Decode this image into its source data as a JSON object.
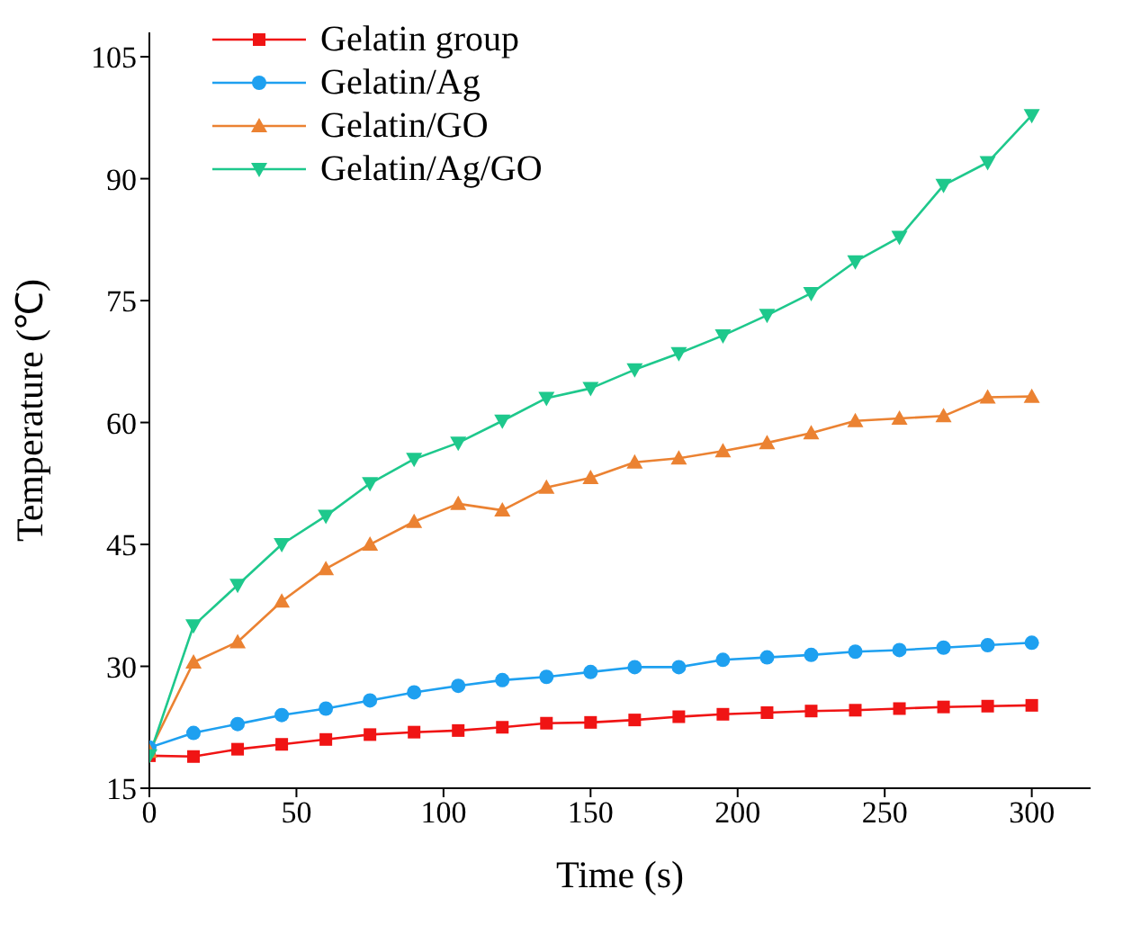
{
  "chart_data": {
    "type": "line",
    "xlabel": "Time (s)",
    "ylabel": "Temperature (℃)",
    "x": [
      0,
      15,
      30,
      45,
      60,
      75,
      90,
      105,
      120,
      135,
      150,
      165,
      180,
      195,
      210,
      225,
      240,
      255,
      270,
      285,
      300
    ],
    "xlim": [
      0,
      320
    ],
    "xticks": [
      0,
      50,
      100,
      150,
      200,
      250,
      300
    ],
    "ylim": [
      15,
      108
    ],
    "yticks": [
      15,
      30,
      45,
      60,
      75,
      90,
      105
    ],
    "grid": false,
    "legend": "top left",
    "series": [
      {
        "name": "Gelatin group",
        "color": "#f01414",
        "marker": "square",
        "values": [
          19.0,
          18.9,
          19.8,
          20.4,
          21.0,
          21.6,
          21.9,
          22.1,
          22.5,
          23.0,
          23.1,
          23.4,
          23.8,
          24.1,
          24.3,
          24.5,
          24.6,
          24.8,
          25.0,
          25.1,
          25.2
        ]
      },
      {
        "name": "Gelatin/Ag",
        "color": "#1ea0f0",
        "marker": "circle",
        "values": [
          20.0,
          21.8,
          22.9,
          24.0,
          24.8,
          25.8,
          26.8,
          27.6,
          28.3,
          28.7,
          29.3,
          29.9,
          29.9,
          30.8,
          31.1,
          31.4,
          31.8,
          32.0,
          32.3,
          32.6,
          32.9
        ]
      },
      {
        "name": "Gelatin/GO",
        "color": "#eb8232",
        "marker": "triangle",
        "values": [
          19.5,
          30.5,
          33.0,
          38.0,
          42.0,
          45.0,
          47.8,
          50.0,
          49.2,
          52.0,
          53.2,
          55.1,
          55.6,
          56.5,
          57.5,
          58.7,
          60.2,
          60.5,
          60.8,
          63.1,
          63.2
        ]
      },
      {
        "name": "Gelatin/Ag/GO",
        "color": "#1ec88c",
        "marker": "triangle-down",
        "values": [
          19.0,
          35.0,
          40.0,
          45.0,
          48.5,
          52.5,
          55.5,
          57.5,
          60.2,
          63.0,
          64.2,
          66.5,
          68.5,
          70.7,
          73.2,
          75.9,
          79.8,
          82.8,
          89.2,
          92.0,
          97.8
        ]
      }
    ]
  }
}
